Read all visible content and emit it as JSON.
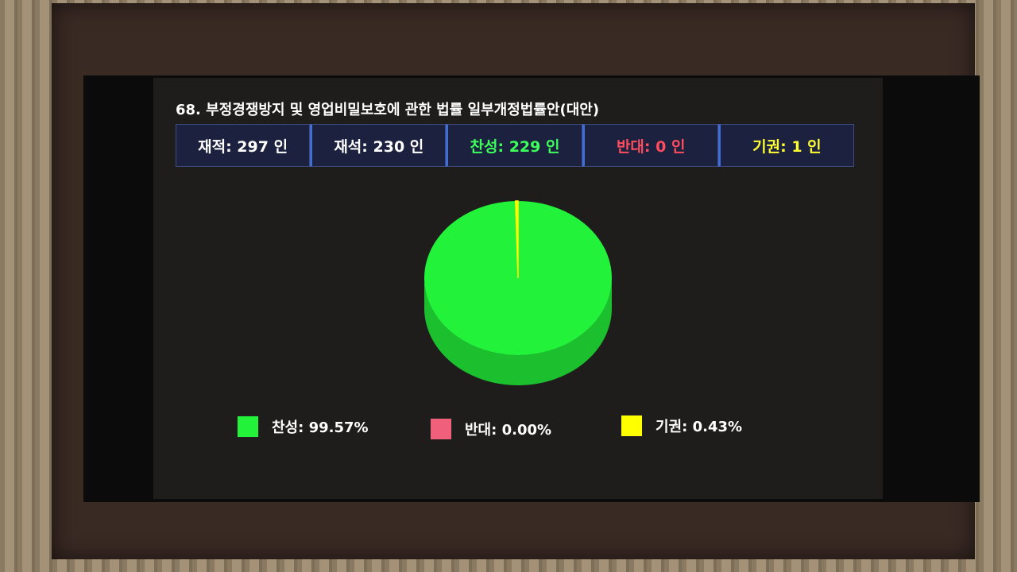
{
  "title": "68. 부정경쟁방지 및 영업비밀보호에 관한 법률 일부개정법률안(대안)",
  "stats": [
    {
      "label": "재적: 297 인",
      "color": "#ffffff"
    },
    {
      "label": "재석: 230 인",
      "color": "#ffffff"
    },
    {
      "label": "찬성: 229 인",
      "color": "#3cff5a"
    },
    {
      "label": "반대:  0 인",
      "color": "#ff4d5e"
    },
    {
      "label": "기권:  1 인",
      "color": "#ffff33"
    }
  ],
  "chart_data": {
    "type": "pie",
    "style": "3d",
    "slices": [
      {
        "name": "찬성",
        "value": 99.57,
        "color": "#22f23a",
        "side_color": "#1cc02e",
        "legend": "찬성: 99.57%"
      },
      {
        "name": "반대",
        "value": 0.0,
        "color": "#f0607a",
        "side_color": "#c04a60",
        "legend": "반대: 0.00%"
      },
      {
        "name": "기권",
        "value": 0.43,
        "color": "#ffff00",
        "side_color": "#cccc00",
        "legend": "기권: 0.43%"
      }
    ],
    "legend_position": "bottom"
  }
}
